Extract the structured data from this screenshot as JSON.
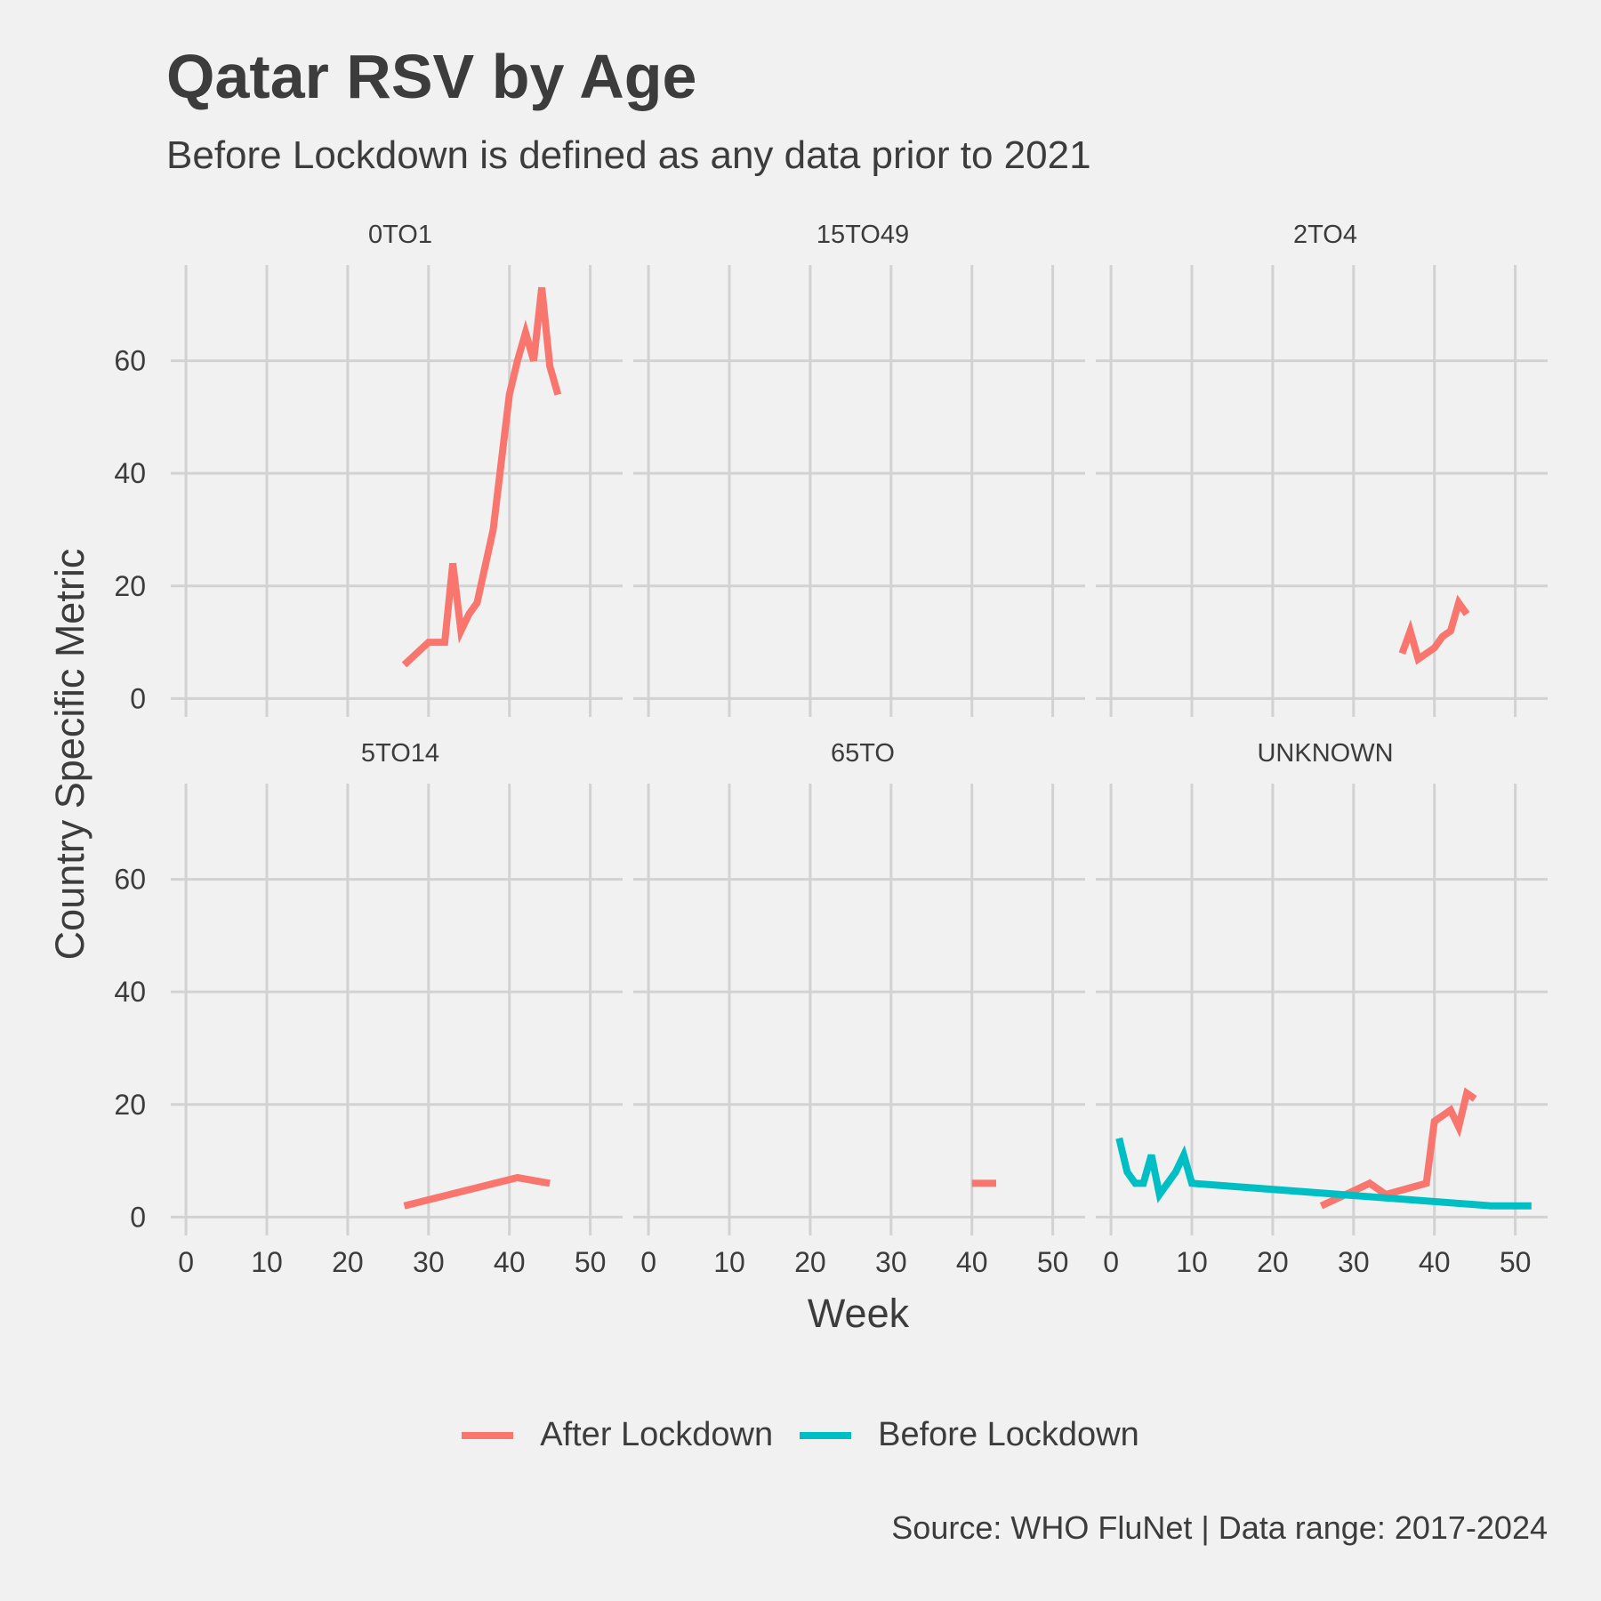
{
  "chart_data": {
    "type": "line",
    "title": "Qatar RSV by Age",
    "subtitle": "Before Lockdown is defined as any data prior to 2021",
    "xlabel": "Week",
    "ylabel": "Country Specific Metric",
    "caption": "Source: WHO FluNet | Data range: 2017-2024",
    "xlim": [
      -1,
      54
    ],
    "ylim": [
      -2,
      77
    ],
    "x_ticks": [
      0,
      10,
      20,
      30,
      40,
      50
    ],
    "y_ticks": [
      0,
      20,
      40,
      60
    ],
    "grid": true,
    "legend_position": "bottom",
    "legend": [
      {
        "name": "After Lockdown",
        "color": "#F8766D"
      },
      {
        "name": "Before Lockdown",
        "color": "#00BFC4"
      }
    ],
    "facets": [
      {
        "label": "0TO1",
        "series": [
          {
            "name": "After Lockdown",
            "color": "#F8766D",
            "x": [
              27,
              30,
              32,
              33,
              34,
              35,
              36,
              38,
              39,
              40,
              41,
              42,
              43,
              44,
              45,
              46
            ],
            "y": [
              6,
              10,
              10,
              24,
              12,
              15,
              17,
              30,
              42,
              54,
              60,
              65,
              60,
              73,
              59,
              54
            ]
          }
        ]
      },
      {
        "label": "15TO49",
        "series": []
      },
      {
        "label": "2TO4",
        "series": [
          {
            "name": "After Lockdown",
            "color": "#F8766D",
            "x": [
              36,
              37,
              38,
              40,
              41,
              42,
              43,
              44
            ],
            "y": [
              8,
              12,
              7,
              9,
              11,
              12,
              17,
              15
            ]
          }
        ]
      },
      {
        "label": "5TO14",
        "series": [
          {
            "name": "After Lockdown",
            "color": "#F8766D",
            "x": [
              27,
              41,
              45
            ],
            "y": [
              2,
              7,
              6
            ]
          }
        ]
      },
      {
        "label": "65TO",
        "series": [
          {
            "name": "After Lockdown",
            "color": "#F8766D",
            "x": [
              40,
              43
            ],
            "y": [
              6,
              6
            ]
          }
        ]
      },
      {
        "label": "UNKNOWN",
        "series": [
          {
            "name": "After Lockdown",
            "color": "#F8766D",
            "x": [
              26,
              32,
              34,
              39,
              40,
              42,
              43,
              44,
              45
            ],
            "y": [
              2,
              6,
              4,
              6,
              17,
              19,
              16,
              22,
              21
            ]
          },
          {
            "name": "Before Lockdown",
            "color": "#00BFC4",
            "x": [
              1,
              2,
              3,
              4,
              5,
              6,
              8,
              9,
              10,
              47,
              52
            ],
            "y": [
              14,
              8,
              6,
              6,
              11,
              4,
              8,
              11,
              6,
              2,
              2
            ]
          }
        ]
      }
    ]
  }
}
